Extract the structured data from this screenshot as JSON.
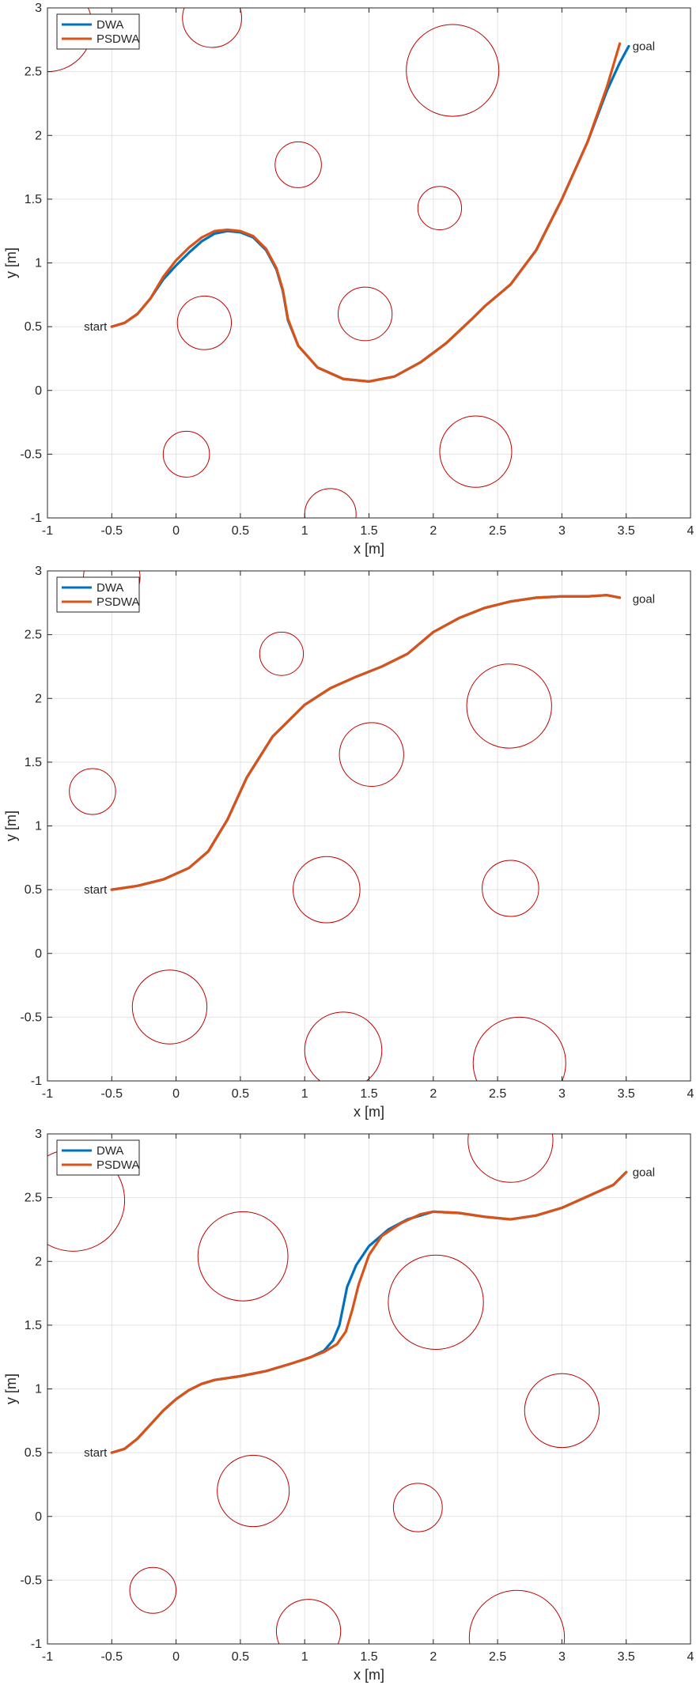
{
  "colors": {
    "dwa": "#0072BD",
    "psdwa": "#D95319",
    "obstacle": "#C00000",
    "grid": "#E3E3E3",
    "axis": "#262626"
  },
  "chart_data": [
    {
      "type": "line",
      "xlabel": "x [m]",
      "ylabel": "y [m]",
      "xlim": [
        -1,
        4
      ],
      "ylim": [
        -1,
        3
      ],
      "xticks": [
        -1,
        -0.5,
        0,
        0.5,
        1,
        1.5,
        2,
        2.5,
        3,
        3.5,
        4
      ],
      "yticks": [
        -1,
        -0.5,
        0,
        0.5,
        1,
        1.5,
        2,
        2.5,
        3
      ],
      "xtick_labels": [
        "-1",
        "-0.5",
        "0",
        "0.5",
        "1",
        "1.5",
        "2",
        "2.5",
        "3",
        "3.5",
        "4"
      ],
      "ytick_labels": [
        "-1",
        "-0.5",
        "0",
        "0.5",
        "1",
        "1.5",
        "2",
        "2.5",
        "3"
      ],
      "grid": true,
      "legend": {
        "placement": "top-left",
        "entries": [
          "DWA",
          "PSDWA"
        ]
      },
      "annotations": [
        {
          "text": "start",
          "x": -0.5,
          "y": 0.5,
          "side": "left"
        },
        {
          "text": "goal",
          "x": 3.5,
          "y": 2.7,
          "side": "right"
        }
      ],
      "obstacles": [
        {
          "cx": 0.28,
          "cy": 2.92,
          "r": 0.23
        },
        {
          "cx": 2.15,
          "cy": 2.51,
          "r": 0.36
        },
        {
          "cx": 0.95,
          "cy": 1.77,
          "r": 0.18
        },
        {
          "cx": 2.05,
          "cy": 1.43,
          "r": 0.17
        },
        {
          "cx": 0.22,
          "cy": 0.53,
          "r": 0.21
        },
        {
          "cx": 1.47,
          "cy": 0.6,
          "r": 0.21
        },
        {
          "cx": 0.08,
          "cy": -0.5,
          "r": 0.18
        },
        {
          "cx": 2.33,
          "cy": -0.48,
          "r": 0.28
        },
        {
          "cx": 1.2,
          "cy": -0.97,
          "r": 0.2
        },
        {
          "cx": -1.0,
          "cy": 2.85,
          "r": 0.35
        }
      ],
      "series": [
        {
          "name": "DWA",
          "points": [
            [
              -0.5,
              0.5
            ],
            [
              -0.4,
              0.53
            ],
            [
              -0.3,
              0.6
            ],
            [
              -0.2,
              0.72
            ],
            [
              -0.1,
              0.87
            ],
            [
              0,
              0.98
            ],
            [
              0.1,
              1.08
            ],
            [
              0.2,
              1.17
            ],
            [
              0.3,
              1.23
            ],
            [
              0.4,
              1.25
            ],
            [
              0.5,
              1.24
            ],
            [
              0.6,
              1.2
            ],
            [
              0.7,
              1.1
            ],
            [
              0.78,
              0.95
            ],
            [
              0.83,
              0.78
            ],
            [
              0.87,
              0.55
            ],
            [
              0.95,
              0.35
            ],
            [
              1.1,
              0.18
            ],
            [
              1.3,
              0.09
            ],
            [
              1.5,
              0.07
            ],
            [
              1.7,
              0.11
            ],
            [
              1.9,
              0.22
            ],
            [
              2.1,
              0.37
            ],
            [
              2.3,
              0.56
            ],
            [
              2.4,
              0.66
            ],
            [
              2.6,
              0.83
            ],
            [
              2.8,
              1.1
            ],
            [
              3.0,
              1.5
            ],
            [
              3.2,
              1.95
            ],
            [
              3.35,
              2.35
            ],
            [
              3.45,
              2.57
            ],
            [
              3.52,
              2.7
            ]
          ]
        },
        {
          "name": "PSDWA",
          "points": [
            [
              -0.5,
              0.5
            ],
            [
              -0.4,
              0.53
            ],
            [
              -0.3,
              0.6
            ],
            [
              -0.2,
              0.72
            ],
            [
              -0.1,
              0.89
            ],
            [
              0,
              1.02
            ],
            [
              0.1,
              1.12
            ],
            [
              0.2,
              1.2
            ],
            [
              0.3,
              1.25
            ],
            [
              0.4,
              1.26
            ],
            [
              0.5,
              1.25
            ],
            [
              0.6,
              1.21
            ],
            [
              0.7,
              1.11
            ],
            [
              0.78,
              0.96
            ],
            [
              0.83,
              0.79
            ],
            [
              0.87,
              0.56
            ],
            [
              0.95,
              0.35
            ],
            [
              1.1,
              0.18
            ],
            [
              1.3,
              0.09
            ],
            [
              1.5,
              0.07
            ],
            [
              1.7,
              0.11
            ],
            [
              1.9,
              0.22
            ],
            [
              2.1,
              0.37
            ],
            [
              2.3,
              0.56
            ],
            [
              2.4,
              0.66
            ],
            [
              2.6,
              0.83
            ],
            [
              2.8,
              1.1
            ],
            [
              3.0,
              1.5
            ],
            [
              3.2,
              1.95
            ],
            [
              3.35,
              2.38
            ],
            [
              3.4,
              2.55
            ],
            [
              3.45,
              2.72
            ]
          ]
        }
      ]
    },
    {
      "type": "line",
      "xlabel": "x [m]",
      "ylabel": "y [m]",
      "xlim": [
        -1,
        4
      ],
      "ylim": [
        -1,
        3
      ],
      "xticks": [
        -1,
        -0.5,
        0,
        0.5,
        1,
        1.5,
        2,
        2.5,
        3,
        3.5,
        4
      ],
      "yticks": [
        -1,
        -0.5,
        0,
        0.5,
        1,
        1.5,
        2,
        2.5,
        3
      ],
      "xtick_labels": [
        "-1",
        "-0.5",
        "0",
        "0.5",
        "1",
        "1.5",
        "2",
        "2.5",
        "3",
        "3.5",
        "4"
      ],
      "ytick_labels": [
        "-1",
        "-0.5",
        "0",
        "0.5",
        "1",
        "1.5",
        "2",
        "2.5",
        "3"
      ],
      "grid": true,
      "legend": {
        "placement": "top-left",
        "entries": [
          "DWA",
          "PSDWA"
        ]
      },
      "annotations": [
        {
          "text": "start",
          "x": -0.5,
          "y": 0.5,
          "side": "left"
        },
        {
          "text": "goal",
          "x": 3.5,
          "y": 2.78,
          "side": "right"
        }
      ],
      "obstacles": [
        {
          "cx": -0.5,
          "cy": 2.95,
          "r": 0.22
        },
        {
          "cx": 0.82,
          "cy": 2.35,
          "r": 0.17
        },
        {
          "cx": 2.59,
          "cy": 1.94,
          "r": 0.33
        },
        {
          "cx": 1.52,
          "cy": 1.56,
          "r": 0.25
        },
        {
          "cx": -0.65,
          "cy": 1.27,
          "r": 0.18
        },
        {
          "cx": 1.17,
          "cy": 0.5,
          "r": 0.26
        },
        {
          "cx": 2.6,
          "cy": 0.51,
          "r": 0.22
        },
        {
          "cx": -0.05,
          "cy": -0.42,
          "r": 0.29
        },
        {
          "cx": 1.3,
          "cy": -0.76,
          "r": 0.3
        },
        {
          "cx": 2.67,
          "cy": -0.86,
          "r": 0.36
        }
      ],
      "series": [
        {
          "name": "DWA",
          "points": [
            [
              -0.5,
              0.5
            ],
            [
              -0.3,
              0.53
            ],
            [
              -0.1,
              0.58
            ],
            [
              0.1,
              0.67
            ],
            [
              0.25,
              0.8
            ],
            [
              0.4,
              1.05
            ],
            [
              0.55,
              1.38
            ],
            [
              0.75,
              1.7
            ],
            [
              1.0,
              1.95
            ],
            [
              1.2,
              2.08
            ],
            [
              1.4,
              2.17
            ],
            [
              1.6,
              2.25
            ],
            [
              1.8,
              2.35
            ],
            [
              2.0,
              2.52
            ],
            [
              2.2,
              2.63
            ],
            [
              2.4,
              2.71
            ],
            [
              2.6,
              2.76
            ],
            [
              2.8,
              2.79
            ],
            [
              3.0,
              2.8
            ],
            [
              3.2,
              2.8
            ],
            [
              3.35,
              2.81
            ],
            [
              3.45,
              2.79
            ]
          ]
        },
        {
          "name": "PSDWA",
          "points": [
            [
              -0.5,
              0.5
            ],
            [
              -0.3,
              0.53
            ],
            [
              -0.1,
              0.58
            ],
            [
              0.1,
              0.67
            ],
            [
              0.25,
              0.8
            ],
            [
              0.4,
              1.05
            ],
            [
              0.55,
              1.38
            ],
            [
              0.75,
              1.7
            ],
            [
              1.0,
              1.95
            ],
            [
              1.2,
              2.08
            ],
            [
              1.4,
              2.17
            ],
            [
              1.6,
              2.25
            ],
            [
              1.8,
              2.35
            ],
            [
              2.0,
              2.52
            ],
            [
              2.2,
              2.63
            ],
            [
              2.4,
              2.71
            ],
            [
              2.6,
              2.76
            ],
            [
              2.8,
              2.79
            ],
            [
              3.0,
              2.8
            ],
            [
              3.2,
              2.8
            ],
            [
              3.35,
              2.81
            ],
            [
              3.45,
              2.79
            ]
          ]
        }
      ]
    },
    {
      "type": "line",
      "xlabel": "x [m]",
      "ylabel": "y [m]",
      "xlim": [
        -1,
        4
      ],
      "ylim": [
        -1,
        3
      ],
      "xticks": [
        -1,
        -0.5,
        0,
        0.5,
        1,
        1.5,
        2,
        2.5,
        3,
        3.5,
        4
      ],
      "yticks": [
        -1,
        -0.5,
        0,
        0.5,
        1,
        1.5,
        2,
        2.5,
        3
      ],
      "xtick_labels": [
        "-1",
        "-0.5",
        "0",
        "0.5",
        "1",
        "1.5",
        "2",
        "2.5",
        "3",
        "3.5",
        "4"
      ],
      "ytick_labels": [
        "-1",
        "-0.5",
        "0",
        "0.5",
        "1",
        "1.5",
        "2",
        "2.5",
        "3"
      ],
      "grid": true,
      "legend": {
        "placement": "top-left",
        "entries": [
          "DWA",
          "PSDWA"
        ]
      },
      "annotations": [
        {
          "text": "start",
          "x": -0.5,
          "y": 0.5,
          "side": "left"
        },
        {
          "text": "goal",
          "x": 3.5,
          "y": 2.7,
          "side": "right"
        }
      ],
      "obstacles": [
        {
          "cx": 2.6,
          "cy": 2.95,
          "r": 0.33
        },
        {
          "cx": -0.8,
          "cy": 2.48,
          "r": 0.4
        },
        {
          "cx": 0.52,
          "cy": 2.04,
          "r": 0.35
        },
        {
          "cx": 2.02,
          "cy": 1.68,
          "r": 0.37
        },
        {
          "cx": 3.0,
          "cy": 0.83,
          "r": 0.29
        },
        {
          "cx": 0.6,
          "cy": 0.2,
          "r": 0.28
        },
        {
          "cx": 1.88,
          "cy": 0.07,
          "r": 0.19
        },
        {
          "cx": -0.18,
          "cy": -0.58,
          "r": 0.18
        },
        {
          "cx": 1.03,
          "cy": -0.9,
          "r": 0.25
        },
        {
          "cx": 2.65,
          "cy": -0.95,
          "r": 0.37
        }
      ],
      "series": [
        {
          "name": "DWA",
          "points": [
            [
              -0.5,
              0.5
            ],
            [
              -0.4,
              0.53
            ],
            [
              -0.3,
              0.61
            ],
            [
              -0.2,
              0.72
            ],
            [
              -0.1,
              0.83
            ],
            [
              0,
              0.92
            ],
            [
              0.1,
              0.99
            ],
            [
              0.2,
              1.04
            ],
            [
              0.3,
              1.07
            ],
            [
              0.5,
              1.1
            ],
            [
              0.7,
              1.14
            ],
            [
              0.9,
              1.2
            ],
            [
              1.05,
              1.25
            ],
            [
              1.15,
              1.3
            ],
            [
              1.22,
              1.38
            ],
            [
              1.27,
              1.5
            ],
            [
              1.3,
              1.65
            ],
            [
              1.33,
              1.8
            ],
            [
              1.4,
              1.97
            ],
            [
              1.5,
              2.12
            ],
            [
              1.65,
              2.25
            ],
            [
              1.8,
              2.33
            ],
            [
              2.0,
              2.39
            ],
            [
              2.2,
              2.38
            ],
            [
              2.4,
              2.35
            ],
            [
              2.6,
              2.33
            ],
            [
              2.8,
              2.36
            ],
            [
              3.0,
              2.42
            ],
            [
              3.2,
              2.51
            ],
            [
              3.4,
              2.6
            ],
            [
              3.5,
              2.7
            ]
          ]
        },
        {
          "name": "PSDWA",
          "points": [
            [
              -0.5,
              0.5
            ],
            [
              -0.4,
              0.53
            ],
            [
              -0.3,
              0.61
            ],
            [
              -0.2,
              0.72
            ],
            [
              -0.1,
              0.83
            ],
            [
              0,
              0.92
            ],
            [
              0.1,
              0.99
            ],
            [
              0.2,
              1.04
            ],
            [
              0.3,
              1.07
            ],
            [
              0.5,
              1.1
            ],
            [
              0.7,
              1.14
            ],
            [
              0.9,
              1.2
            ],
            [
              1.05,
              1.25
            ],
            [
              1.15,
              1.29
            ],
            [
              1.25,
              1.35
            ],
            [
              1.32,
              1.45
            ],
            [
              1.37,
              1.62
            ],
            [
              1.42,
              1.82
            ],
            [
              1.5,
              2.05
            ],
            [
              1.6,
              2.2
            ],
            [
              1.75,
              2.3
            ],
            [
              1.9,
              2.37
            ],
            [
              2.0,
              2.39
            ],
            [
              2.2,
              2.38
            ],
            [
              2.4,
              2.35
            ],
            [
              2.6,
              2.33
            ],
            [
              2.8,
              2.36
            ],
            [
              3.0,
              2.42
            ],
            [
              3.2,
              2.51
            ],
            [
              3.4,
              2.6
            ],
            [
              3.5,
              2.7
            ]
          ]
        }
      ]
    }
  ]
}
